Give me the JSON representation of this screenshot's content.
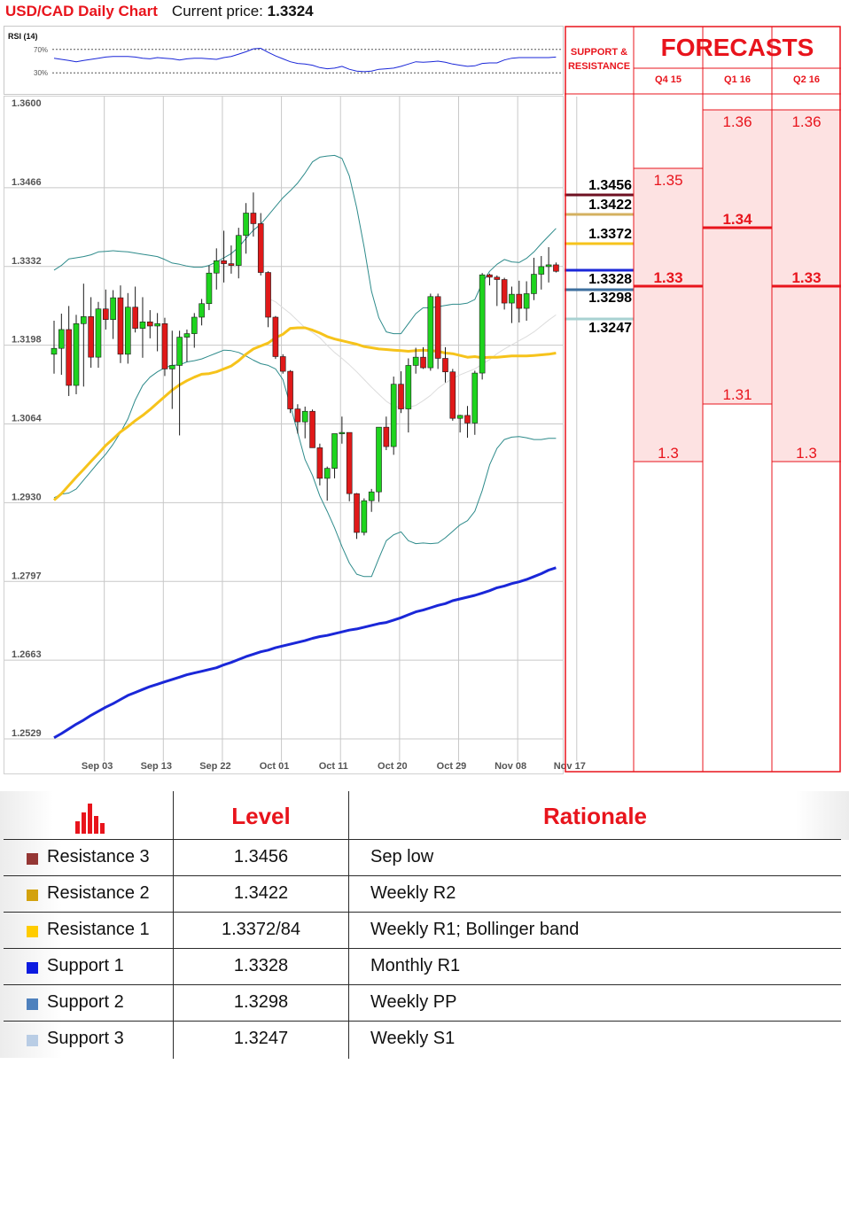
{
  "header": {
    "title": "USD/CAD Daily Chart",
    "price_label": "Current price:",
    "price": "1.3324"
  },
  "colors": {
    "accent": "#e8141c",
    "up": "#1ed41e",
    "down": "#e01919",
    "sma_short": "#f6c31b",
    "sma_long": "#1a27d8",
    "bollinger": "#2e8b8b"
  },
  "chart_data": [
    {
      "type": "candlestick",
      "title": "USD/CAD Daily Chart",
      "ylim": [
        1.2529,
        1.36
      ],
      "y_ticks": [
        "1.3600",
        "1.3466",
        "1.3332",
        "1.3198",
        "1.3064",
        "1.2930",
        "1.2797",
        "1.2663",
        "1.2529"
      ],
      "x_ticks": [
        {
          "label": "Sep 03",
          "index": 2
        },
        {
          "label": "Sep 13",
          "index": 10
        },
        {
          "label": "Sep 22",
          "index": 18
        },
        {
          "label": "Oct 01",
          "index": 26
        },
        {
          "label": "Oct 11",
          "index": 34
        },
        {
          "label": "Oct 20",
          "index": 42
        },
        {
          "label": "Oct 29",
          "index": 50
        },
        {
          "label": "Nov 08",
          "index": 58
        },
        {
          "label": "Nov 17",
          "index": 66
        }
      ],
      "ohlc": [
        [
          1.3183,
          1.324,
          1.315,
          1.3193
        ],
        [
          1.3193,
          1.3252,
          1.3148,
          1.3225
        ],
        [
          1.3225,
          1.3265,
          1.3112,
          1.313
        ],
        [
          1.313,
          1.325,
          1.3115,
          1.3235
        ],
        [
          1.3235,
          1.3303,
          1.3128,
          1.3247
        ],
        [
          1.3247,
          1.328,
          1.316,
          1.3178
        ],
        [
          1.3178,
          1.3272,
          1.316,
          1.326
        ],
        [
          1.326,
          1.3293,
          1.3225,
          1.3242
        ],
        [
          1.3242,
          1.3292,
          1.3209,
          1.3279
        ],
        [
          1.3279,
          1.33,
          1.3168,
          1.3183
        ],
        [
          1.3183,
          1.3287,
          1.3167,
          1.3263
        ],
        [
          1.3263,
          1.3298,
          1.322,
          1.3227
        ],
        [
          1.3227,
          1.328,
          1.3177,
          1.3238
        ],
        [
          1.3238,
          1.3258,
          1.321,
          1.3231
        ],
        [
          1.3231,
          1.3253,
          1.3188,
          1.3235
        ],
        [
          1.3235,
          1.3245,
          1.3146,
          1.3158
        ],
        [
          1.3158,
          1.3223,
          1.309,
          1.3164
        ],
        [
          1.3164,
          1.3223,
          1.3045,
          1.3212
        ],
        [
          1.3212,
          1.3225,
          1.317,
          1.3218
        ],
        [
          1.3218,
          1.3253,
          1.3194,
          1.3246
        ],
        [
          1.3246,
          1.3277,
          1.3232,
          1.3269
        ],
        [
          1.3269,
          1.3334,
          1.3258,
          1.3321
        ],
        [
          1.3321,
          1.3363,
          1.3293,
          1.3342
        ],
        [
          1.3342,
          1.3393,
          1.3305,
          1.3337
        ],
        [
          1.3337,
          1.3368,
          1.332,
          1.3334
        ],
        [
          1.3334,
          1.3398,
          1.3312,
          1.3385
        ],
        [
          1.3385,
          1.344,
          1.3354,
          1.3423
        ],
        [
          1.3423,
          1.3458,
          1.3383,
          1.3405
        ],
        [
          1.3405,
          1.3423,
          1.3317,
          1.3322
        ],
        [
          1.3322,
          1.3324,
          1.3229,
          1.3246
        ],
        [
          1.3246,
          1.3248,
          1.3175,
          1.3179
        ],
        [
          1.3179,
          1.3183,
          1.315,
          1.3154
        ],
        [
          1.3154,
          1.3156,
          1.3083,
          1.309
        ],
        [
          1.309,
          1.3098,
          1.3048,
          1.3068
        ],
        [
          1.3068,
          1.3094,
          1.304,
          1.3086
        ],
        [
          1.3086,
          1.3089,
          1.3024,
          1.3024
        ],
        [
          1.3024,
          1.3031,
          1.296,
          1.2972
        ],
        [
          1.2972,
          1.2992,
          1.2934,
          1.2989
        ],
        [
          1.2989,
          1.3044,
          1.2972,
          1.3048
        ],
        [
          1.3048,
          1.3077,
          1.3031,
          1.305
        ],
        [
          1.305,
          1.305,
          1.2933,
          1.2946
        ],
        [
          1.2946,
          1.2947,
          1.2869,
          1.288
        ],
        [
          1.288,
          1.2938,
          1.2875,
          1.2934
        ],
        [
          1.2934,
          1.2954,
          1.2915,
          1.2949
        ],
        [
          1.2949,
          1.3059,
          1.2932,
          1.3059
        ],
        [
          1.3059,
          1.3077,
          1.302,
          1.3026
        ],
        [
          1.3026,
          1.3145,
          1.3012,
          1.3132
        ],
        [
          1.3132,
          1.3154,
          1.3083,
          1.309
        ],
        [
          1.309,
          1.3176,
          1.305,
          1.3164
        ],
        [
          1.3164,
          1.3194,
          1.315,
          1.3178
        ],
        [
          1.3178,
          1.3195,
          1.3158,
          1.316
        ],
        [
          1.316,
          1.3286,
          1.3155,
          1.3281
        ],
        [
          1.3281,
          1.3286,
          1.3158,
          1.3176
        ],
        [
          1.3176,
          1.3195,
          1.3135,
          1.3153
        ],
        [
          1.3153,
          1.3158,
          1.307,
          1.3074
        ],
        [
          1.3074,
          1.308,
          1.305,
          1.3079
        ],
        [
          1.3079,
          1.3095,
          1.3041,
          1.3066
        ],
        [
          1.3066,
          1.3155,
          1.3046,
          1.3151
        ],
        [
          1.3151,
          1.3321,
          1.314,
          1.3318
        ],
        [
          1.3318,
          1.332,
          1.33,
          1.3314
        ],
        [
          1.3314,
          1.3317,
          1.3265,
          1.331
        ],
        [
          1.331,
          1.3313,
          1.3259,
          1.327
        ],
        [
          1.327,
          1.3298,
          1.3236,
          1.3285
        ],
        [
          1.3285,
          1.3308,
          1.3237,
          1.3261
        ],
        [
          1.3261,
          1.3307,
          1.324,
          1.3286
        ],
        [
          1.3286,
          1.3347,
          1.3275,
          1.3319
        ],
        [
          1.3319,
          1.335,
          1.3293,
          1.3332
        ],
        [
          1.3332,
          1.3365,
          1.3305,
          1.3335
        ],
        [
          1.3335,
          1.3339,
          1.3322,
          1.3324
        ]
      ],
      "series": [
        {
          "name": "Bollinger upper",
          "values": [
            1.3326,
            1.3334,
            1.3345,
            1.3347,
            1.3349,
            1.3352,
            1.3357,
            1.3358,
            1.3359,
            1.3358,
            1.3357,
            1.3355,
            1.3353,
            1.3351,
            1.3349,
            1.3344,
            1.3338,
            1.3336,
            1.3333,
            1.3331,
            1.3331,
            1.3334,
            1.334,
            1.3347,
            1.3354,
            1.3365,
            1.338,
            1.3394,
            1.3404,
            1.3419,
            1.3434,
            1.3449,
            1.3461,
            1.3474,
            1.3491,
            1.351,
            1.3518,
            1.352,
            1.3521,
            1.3516,
            1.3486,
            1.3432,
            1.3365,
            1.329,
            1.3245,
            1.3221,
            1.3218,
            1.3218,
            1.3235,
            1.3252,
            1.3262,
            1.3262,
            1.3264,
            1.3266,
            1.3268,
            1.3268,
            1.327,
            1.3276,
            1.3304,
            1.3324,
            1.3336,
            1.3344,
            1.334,
            1.3339,
            1.3346,
            1.3357,
            1.3371,
            1.3384,
            1.3397
          ]
        },
        {
          "name": "Bollinger middle",
          "values": [
            null,
            null,
            null,
            null,
            null,
            null,
            null,
            null,
            null,
            null,
            null,
            null,
            null,
            null,
            null,
            null,
            null,
            null,
            null,
            null,
            null,
            null,
            null,
            null,
            null,
            null,
            null,
            null,
            null,
            1.3278,
            1.3272,
            1.3262,
            1.3252,
            1.324,
            1.3228,
            1.322,
            1.3211,
            1.3198,
            1.3186,
            1.3176,
            1.3165,
            1.3153,
            1.314,
            1.3127,
            1.3115,
            1.3103,
            1.3095,
            1.3092,
            1.3093,
            1.3096,
            1.3104,
            1.3113,
            1.3125,
            1.3134,
            1.3142,
            1.3148,
            1.3153,
            1.3158,
            1.3166,
            1.3174,
            1.3184,
            1.3192,
            1.3199,
            1.3206,
            1.3213,
            1.3221,
            1.3231,
            1.3241,
            1.325
          ]
        },
        {
          "name": "Bollinger lower",
          "values": [
            1.2939,
            1.2945,
            1.2947,
            1.2954,
            1.2969,
            1.2984,
            1.2999,
            1.3013,
            1.303,
            1.305,
            1.3073,
            1.3105,
            1.313,
            1.3144,
            1.3153,
            1.316,
            1.3164,
            1.3165,
            1.317,
            1.3172,
            1.3175,
            1.318,
            1.3185,
            1.319,
            1.3189,
            1.3186,
            1.318,
            1.3173,
            1.3167,
            1.3164,
            1.3158,
            1.314,
            1.3096,
            1.305,
            1.3004,
            1.2977,
            1.2942,
            1.2916,
            1.2888,
            1.2856,
            1.2828,
            1.2809,
            1.2805,
            1.2805,
            1.2836,
            1.2866,
            1.2876,
            1.2881,
            1.2866,
            1.2861,
            1.2862,
            1.2861,
            1.2862,
            1.2871,
            1.2882,
            1.2893,
            1.29,
            1.2916,
            1.2951,
            1.2995,
            1.3023,
            1.3038,
            1.3042,
            1.3043,
            1.3041,
            1.3038,
            1.3038,
            1.304,
            1.304
          ]
        },
        {
          "name": "SMA short",
          "values": [
            1.2935,
            1.2946,
            1.296,
            1.2974,
            1.2987,
            1.3001,
            1.3014,
            1.3028,
            1.3039,
            1.3051,
            1.306,
            1.307,
            1.3079,
            1.3089,
            1.31,
            1.3111,
            1.3122,
            1.3131,
            1.3138,
            1.3144,
            1.3149,
            1.315,
            1.3153,
            1.3158,
            1.3163,
            1.3172,
            1.3183,
            1.3192,
            1.3197,
            1.3202,
            1.3211,
            1.3217,
            1.3227,
            1.3228,
            1.3228,
            1.3224,
            1.3219,
            1.3213,
            1.3209,
            1.3206,
            1.3203,
            1.32,
            1.3196,
            1.3194,
            1.3192,
            1.3191,
            1.319,
            1.3189,
            1.3188,
            1.3189,
            1.319,
            1.3189,
            1.3188,
            1.3185,
            1.3184,
            1.3181,
            1.3178,
            1.3179,
            1.3177,
            1.3178,
            1.3178,
            1.3179,
            1.318,
            1.318,
            1.318,
            1.3181,
            1.3182,
            1.3183,
            1.3185
          ]
        },
        {
          "name": "SMA long",
          "values": [
            1.2531,
            1.2538,
            1.2546,
            1.2554,
            1.2561,
            1.2569,
            1.2576,
            1.2583,
            1.2589,
            1.2596,
            1.2603,
            1.2608,
            1.2613,
            1.2618,
            1.2622,
            1.2626,
            1.263,
            1.2634,
            1.2638,
            1.2641,
            1.2644,
            1.2647,
            1.265,
            1.2655,
            1.2659,
            1.2664,
            1.2669,
            1.2673,
            1.2677,
            1.268,
            1.2684,
            1.2687,
            1.269,
            1.2693,
            1.2696,
            1.27,
            1.2703,
            1.2705,
            1.2708,
            1.2711,
            1.2714,
            1.2716,
            1.2719,
            1.2722,
            1.2725,
            1.2727,
            1.2731,
            1.2735,
            1.274,
            1.2745,
            1.2748,
            1.2752,
            1.2756,
            1.2759,
            1.2764,
            1.2767,
            1.277,
            1.2773,
            1.2777,
            1.2781,
            1.2786,
            1.2789,
            1.2793,
            1.2796,
            1.28,
            1.2805,
            1.281,
            1.2816,
            1.282
          ]
        }
      ],
      "hlines": [
        1.3456,
        1.3422,
        1.3372,
        1.3328,
        1.3298,
        1.3247
      ]
    },
    {
      "type": "line",
      "title": "RSI (14)",
      "ylim": [
        0,
        100
      ],
      "y_ticks": [
        "70%",
        "30%"
      ],
      "series": [
        {
          "name": "RSI (14)",
          "values": [
            55,
            53,
            51,
            49,
            51,
            53,
            55,
            57,
            58,
            58,
            58,
            57,
            55,
            54,
            56,
            55,
            54,
            52,
            54,
            55,
            55,
            54,
            53,
            56,
            58,
            62,
            66,
            71,
            72,
            65,
            59,
            54,
            49,
            46,
            45,
            43,
            39,
            37,
            38,
            41,
            36,
            33,
            32,
            33,
            36,
            37,
            38,
            41,
            45,
            49,
            48,
            49,
            50,
            48,
            45,
            43,
            41,
            42,
            46,
            47,
            47,
            52,
            55,
            56,
            56,
            56,
            56,
            56,
            57
          ]
        }
      ]
    }
  ],
  "support_resistance": {
    "title_line1": "SUPPORT &",
    "title_line2": "RESISTANCE",
    "levels": [
      {
        "value": "1.3456",
        "color": "#6e1022"
      },
      {
        "value": "1.3422",
        "color": "#d4b160"
      },
      {
        "value": "1.3372",
        "color": "#f6c31b"
      },
      {
        "value": "1.3328",
        "color": "#1a27d8"
      },
      {
        "value": "1.3298",
        "color": "#3d6f9e"
      },
      {
        "value": "1.3247",
        "color": "#a8d2d2"
      }
    ]
  },
  "forecasts": {
    "title": "FORECASTS",
    "quarters": [
      {
        "label": "Q4 15",
        "high": "1.35",
        "mid": "1.33",
        "low": "1.3"
      },
      {
        "label": "Q1 16",
        "high": "1.36",
        "mid": "1.34",
        "low": "1.31"
      },
      {
        "label": "Q2 16",
        "high": "1.36",
        "mid": "1.33",
        "low": "1.3"
      }
    ]
  },
  "table": {
    "headers": {
      "level": "Level",
      "rationale": "Rationale"
    },
    "rows": [
      {
        "name": "Resistance 3",
        "level": "1.3456",
        "rationale": "Sep low",
        "color": "#953735"
      },
      {
        "name": "Resistance 2",
        "level": "1.3422",
        "rationale": "Weekly R2",
        "color": "#d3a20e"
      },
      {
        "name": "Resistance 1",
        "level": "1.3372/84",
        "rationale": "Weekly R1; Bollinger band",
        "color": "#ffcc00"
      },
      {
        "name": "Support 1",
        "level": "1.3328",
        "rationale": "Monthly R1",
        "color": "#0c1be0"
      },
      {
        "name": "Support 2",
        "level": "1.3298",
        "rationale": "Weekly PP",
        "color": "#4f81bd"
      },
      {
        "name": "Support 3",
        "level": "1.3247",
        "rationale": "Weekly S1",
        "color": "#b9cde5"
      }
    ]
  }
}
